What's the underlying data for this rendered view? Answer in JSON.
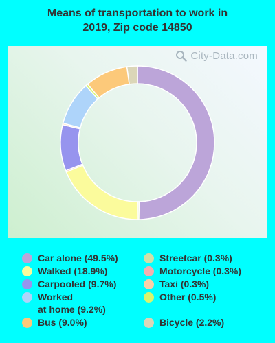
{
  "chart_data": {
    "type": "pie",
    "title_line1": "Means of transportation to work in",
    "title_line2": "2019, Zip code 14850",
    "watermark": "City-Data.com",
    "slices": [
      {
        "label": "Car alone",
        "value": 49.5,
        "legend": "Car alone (49.5%)",
        "color": "#bca5d9"
      },
      {
        "label": "Streetcar",
        "value": 0.3,
        "legend": "Streetcar (0.3%)",
        "color": "#cfe0a8"
      },
      {
        "label": "Walked",
        "value": 18.9,
        "legend": "Walked (18.9%)",
        "color": "#fbfb9c"
      },
      {
        "label": "Motorcycle",
        "value": 0.3,
        "legend": "Motorcycle (0.3%)",
        "color": "#f4b0b0"
      },
      {
        "label": "Carpooled",
        "value": 9.7,
        "legend": "Carpooled (9.7%)",
        "color": "#9794ee"
      },
      {
        "label": "Taxi",
        "value": 0.3,
        "legend": "Taxi (0.3%)",
        "color": "#fbd0a8"
      },
      {
        "label": "Worked at home",
        "value": 9.2,
        "legend_line1": "Worked",
        "legend_line2": "at home (9.2%)",
        "color": "#aed4fa"
      },
      {
        "label": "Other",
        "value": 0.5,
        "legend": "Other (0.5%)",
        "color": "#d8f56e"
      },
      {
        "label": "Bus",
        "value": 9.0,
        "legend": "Bus (9.0%)",
        "color": "#fcc97a"
      },
      {
        "label": "Bicycle",
        "value": 2.2,
        "legend": "Bicycle (2.2%)",
        "color": "#dbd6b8"
      }
    ],
    "grid": false,
    "legend_placement": "bottom"
  }
}
